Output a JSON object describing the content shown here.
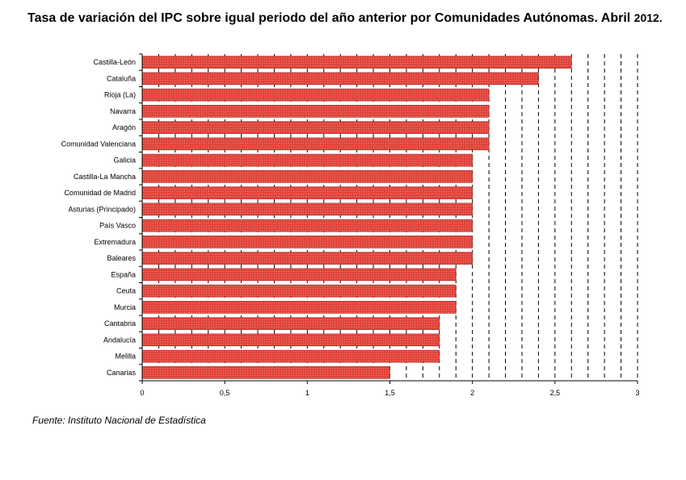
{
  "title_main": "Tasa de variación del IPC sobre igual periodo del año anterior por Comunidades Autónomas. Abril",
  "title_year": "2012.",
  "source": "Fuente: Instituto Nacional de Estadística",
  "colors": {
    "bar": "#e0453c",
    "bar_outline": "#9a2a22"
  },
  "chart_data": {
    "type": "bar",
    "orientation": "horizontal",
    "title": "Tasa de variación del IPC sobre igual periodo del año anterior por Comunidades Autónomas. Abril 2012.",
    "categories": [
      "Castilla-León",
      "Cataluña",
      "Rioja (La)",
      "Navarra",
      "Aragón",
      "Comunidad Valenciana",
      "Galicia",
      "Castilla-La Mancha",
      "Comunidad de Madrid",
      "Asturias (Principado)",
      "País Vasco",
      "Extremadura",
      "Baleares",
      "España",
      "Ceuta",
      "Murcia",
      "Cantabria",
      "Andalucía",
      "Melilla",
      "Canarias"
    ],
    "values": [
      2.6,
      2.4,
      2.1,
      2.1,
      2.1,
      2.1,
      2.0,
      2.0,
      2.0,
      2.0,
      2.0,
      2.0,
      2.0,
      1.9,
      1.9,
      1.9,
      1.8,
      1.8,
      1.8,
      1.5
    ],
    "xlim": [
      0,
      3
    ],
    "xticks": [
      0,
      0.5,
      1,
      1.5,
      2,
      2.5,
      3
    ],
    "xtick_labels": [
      "0",
      "0,5",
      "1",
      "1,5",
      "2",
      "2,5",
      "3"
    ],
    "grid_lines": [
      0.1,
      0.2,
      0.3,
      0.4,
      0.5,
      0.6,
      0.7,
      0.8,
      0.9,
      1.0,
      1.1,
      1.2,
      1.3,
      1.4,
      1.5,
      1.6,
      1.7,
      1.8,
      1.9,
      2.0,
      2.1,
      2.2,
      2.3,
      2.4,
      2.5,
      2.6,
      2.7,
      2.8,
      2.9,
      3.0
    ],
    "grid": "vertical dashed",
    "xlabel": "",
    "ylabel": ""
  }
}
